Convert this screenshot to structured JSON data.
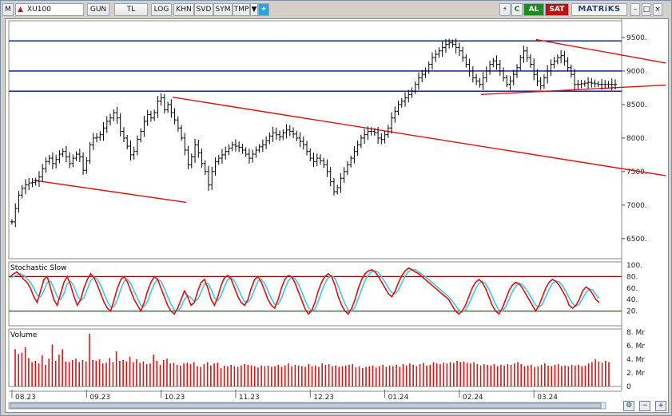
{
  "toolbar": {
    "m_label": "M",
    "symbol": "XU100",
    "buttons": [
      "GUN",
      "TL",
      "LOG",
      "KHN",
      "SVD",
      "SYM",
      "TMP"
    ],
    "al_label": "AL",
    "sat_label": "SAT",
    "c_label": "C",
    "brand": "MATRiKS"
  },
  "colors": {
    "price": "#000000",
    "hline": "#00108c",
    "trend": "#e01010",
    "stoch_k": "#e01010",
    "stoch_d": "#40c8e0",
    "stoch_hi": "#8b0000",
    "stoch_lo": "#007a00",
    "volume": "#d01818"
  },
  "chart_data": [
    {
      "type": "ohlc",
      "panel": "price",
      "ylim": [
        6200,
        9750
      ],
      "yticks": [
        "9500.",
        "9000.",
        "8500.",
        "8000.",
        "7500.",
        "7000.",
        "6500."
      ],
      "ytick_values": [
        9500,
        9000,
        8500,
        8000,
        7500,
        7000,
        6500
      ],
      "x_labels": [
        "08.23",
        "09.23",
        "10.23",
        "11.23",
        "12.23",
        "01.24",
        "02.24",
        "03.24"
      ],
      "x_label_index": [
        0,
        22,
        44,
        66,
        88,
        110,
        132,
        154
      ],
      "n_bars": 177,
      "close": [
        6750,
        6950,
        7150,
        7250,
        7300,
        7330,
        7340,
        7360,
        7420,
        7540,
        7650,
        7700,
        7620,
        7680,
        7760,
        7800,
        7720,
        7620,
        7700,
        7760,
        7720,
        7520,
        7660,
        7900,
        8000,
        8010,
        8050,
        8150,
        8250,
        8300,
        8380,
        8300,
        8100,
        8000,
        7880,
        7750,
        7800,
        7980,
        8100,
        8250,
        8350,
        8300,
        8380,
        8550,
        8600,
        8420,
        8500,
        8380,
        8270,
        8150,
        8000,
        7820,
        7600,
        7720,
        7900,
        7780,
        7620,
        7500,
        7300,
        7500,
        7650,
        7700,
        7750,
        7800,
        7850,
        7900,
        7880,
        7860,
        7820,
        7760,
        7700,
        7760,
        7820,
        7870,
        7900,
        7960,
        8030,
        8080,
        8050,
        8020,
        8080,
        8120,
        8100,
        8060,
        8000,
        7950,
        7900,
        7800,
        7700,
        7650,
        7700,
        7660,
        7600,
        7500,
        7350,
        7200,
        7260,
        7400,
        7500,
        7600,
        7700,
        7800,
        7900,
        8000,
        8050,
        8100,
        8100,
        8080,
        8000,
        7980,
        8050,
        8150,
        8300,
        8400,
        8500,
        8550,
        8600,
        8650,
        8700,
        8800,
        8900,
        8950,
        9000,
        9100,
        9200,
        9250,
        9300,
        9350,
        9400,
        9420,
        9400,
        9350,
        9300,
        9200,
        9100,
        9000,
        8900,
        8850,
        8800,
        8900,
        9000,
        9100,
        9150,
        9100,
        9000,
        8900,
        8800,
        8850,
        8950,
        9050,
        9200,
        9300,
        9200,
        9100,
        8950,
        8850,
        8780,
        8900,
        9000,
        9100,
        9150,
        9200,
        9230,
        9150,
        9050,
        8950,
        8800,
        8800,
        8810,
        8820,
        8830,
        8820,
        8810,
        8800,
        8800,
        8800,
        8800,
        8800,
        8800
      ],
      "hlines": [
        9450,
        9000,
        8700
      ],
      "trendlines": [
        {
          "from": [
            35,
            7370
          ],
          "to": [
            226,
            7040
          ]
        },
        {
          "from": [
            209,
            8610
          ],
          "to": [
            826,
            7440
          ]
        },
        {
          "from": [
            595,
            8650
          ],
          "to": [
            826,
            8790
          ]
        },
        {
          "from": [
            664,
            9470
          ],
          "to": [
            826,
            9120
          ]
        }
      ]
    },
    {
      "type": "line",
      "panel": "stochastic",
      "title": "Stochastic Slow",
      "ylim": [
        0,
        100
      ],
      "yticks": [
        "100.",
        "80.",
        "60.",
        "40.",
        "20."
      ],
      "ytick_values": [
        100,
        80,
        60,
        40,
        20
      ],
      "levels": [
        80,
        20
      ],
      "k": [
        80,
        85,
        88,
        82,
        75,
        70,
        60,
        45,
        35,
        55,
        75,
        80,
        60,
        40,
        30,
        50,
        70,
        80,
        65,
        45,
        30,
        40,
        60,
        75,
        85,
        78,
        65,
        50,
        35,
        25,
        20,
        40,
        60,
        75,
        80,
        70,
        55,
        40,
        30,
        20,
        35,
        55,
        70,
        80,
        75,
        60,
        45,
        30,
        20,
        15,
        25,
        40,
        55,
        45,
        30,
        35,
        55,
        70,
        75,
        60,
        40,
        30,
        45,
        65,
        78,
        82,
        75,
        60,
        45,
        35,
        30,
        40,
        60,
        75,
        80,
        70,
        55,
        40,
        30,
        25,
        40,
        60,
        75,
        82,
        80,
        70,
        55,
        40,
        25,
        15,
        20,
        35,
        55,
        70,
        80,
        85,
        80,
        65,
        45,
        30,
        20,
        15,
        25,
        40,
        60,
        75,
        85,
        90,
        92,
        88,
        80,
        70,
        60,
        50,
        45,
        55,
        70,
        82,
        90,
        95,
        92,
        88,
        85,
        80,
        75,
        70,
        65,
        60,
        55,
        50,
        45,
        40,
        30,
        20,
        15,
        20,
        30,
        45,
        60,
        70,
        75,
        70,
        60,
        45,
        30,
        20,
        15,
        25,
        40,
        55,
        65,
        70,
        68,
        60,
        50,
        40,
        30,
        20,
        30,
        45,
        60,
        70,
        75,
        72,
        65,
        55,
        45,
        30,
        25,
        30,
        40,
        55,
        62,
        58,
        50,
        40,
        35
      ],
      "d": [
        78,
        80,
        83,
        85,
        82,
        76,
        70,
        60,
        48,
        45,
        55,
        70,
        72,
        60,
        45,
        40,
        50,
        68,
        72,
        63,
        47,
        38,
        43,
        58,
        73,
        79,
        76,
        65,
        50,
        37,
        27,
        28,
        40,
        58,
        72,
        75,
        68,
        55,
        42,
        30,
        28,
        37,
        53,
        68,
        75,
        72,
        60,
        45,
        32,
        22,
        20,
        27,
        40,
        47,
        43,
        37,
        40,
        53,
        67,
        68,
        58,
        43,
        38,
        47,
        63,
        75,
        78,
        72,
        60,
        47,
        37,
        35,
        43,
        58,
        72,
        75,
        68,
        55,
        42,
        32,
        32,
        42,
        58,
        72,
        79,
        77,
        68,
        55,
        40,
        27,
        20,
        23,
        37,
        53,
        68,
        78,
        82,
        77,
        63,
        47,
        32,
        22,
        20,
        27,
        42,
        58,
        73,
        83,
        89,
        90,
        87,
        79,
        70,
        60,
        52,
        50,
        57,
        69,
        81,
        89,
        92,
        92,
        88,
        84,
        80,
        75,
        70,
        65,
        60,
        55,
        50,
        45,
        38,
        30,
        22,
        18,
        22,
        32,
        45,
        58,
        68,
        72,
        68,
        58,
        45,
        32,
        22,
        20,
        27,
        40,
        53,
        63,
        68,
        66,
        59,
        50,
        40,
        30,
        27,
        32,
        45,
        58,
        68,
        72,
        71,
        64,
        55,
        43,
        33,
        28,
        32,
        42,
        52,
        58,
        57,
        49,
        42
      ]
    },
    {
      "type": "bar",
      "panel": "volume",
      "title": "Volume",
      "ylim": [
        0,
        8.5
      ],
      "yticks": [
        "8. Mr",
        "6. Mr",
        "4. Mr",
        "2. Mr",
        "0"
      ],
      "ytick_values": [
        8,
        6,
        4,
        2,
        0
      ],
      "values": [
        5.5,
        4.8,
        5.0,
        5.8,
        4.2,
        3.6,
        3.8,
        3.4,
        4.6,
        3.2,
        4.1,
        6.2,
        3.8,
        4.7,
        5.5,
        3.7,
        3.6,
        3.9,
        4.1,
        3.6,
        3.9,
        3.7,
        7.8,
        3.9,
        3.8,
        4.0,
        3.4,
        3.5,
        4.2,
        3.6,
        5.2,
        3.8,
        3.9,
        3.7,
        4.4,
        3.6,
        4.0,
        3.5,
        3.7,
        3.3,
        3.4,
        4.7,
        3.8,
        3.2,
        3.9,
        4.1,
        3.4,
        3.5,
        3.2,
        3.1,
        3.4,
        3.5,
        3.3,
        3.6,
        3.0,
        2.9,
        3.3,
        3.6,
        3.1,
        3.4,
        3.5,
        2.7,
        3.1,
        3.0,
        3.2,
        3.0,
        2.9,
        3.1,
        3.3,
        3.2,
        3.1,
        3.0,
        2.8,
        3.1,
        3.0,
        3.1,
        2.9,
        3.0,
        3.2,
        2.9,
        3.1,
        3.4,
        3.0,
        3.2,
        3.1,
        3.0,
        2.9,
        3.3,
        3.0,
        3.1,
        2.9,
        3.4,
        3.2,
        3.3,
        3.0,
        3.1,
        2.9,
        3.0,
        3.1,
        3.2,
        3.3,
        2.8,
        3.0,
        2.7,
        2.9,
        3.0,
        3.1,
        2.8,
        3.0,
        3.2,
        2.9,
        3.1,
        3.0,
        3.2,
        2.9,
        3.3,
        3.1,
        3.4,
        3.2,
        3.0,
        3.3,
        3.5,
        3.1,
        3.2,
        3.6,
        3.4,
        3.3,
        3.5,
        3.4,
        3.6,
        3.5,
        3.8,
        3.6,
        3.7,
        3.5,
        3.4,
        3.6,
        3.3,
        3.1,
        3.3,
        3.2,
        3.1,
        3.3,
        3.0,
        3.2,
        3.1,
        3.3,
        3.2,
        3.4,
        3.6,
        3.3,
        3.0,
        3.1,
        3.2,
        2.9,
        3.0,
        3.2,
        3.4,
        3.1,
        3.0,
        3.2,
        3.3,
        3.0,
        3.1,
        3.0,
        3.2,
        3.1,
        3.2,
        3.0,
        3.1,
        3.4,
        3.6,
        4.0,
        3.7,
        3.5,
        3.8,
        3.6
      ]
    }
  ]
}
